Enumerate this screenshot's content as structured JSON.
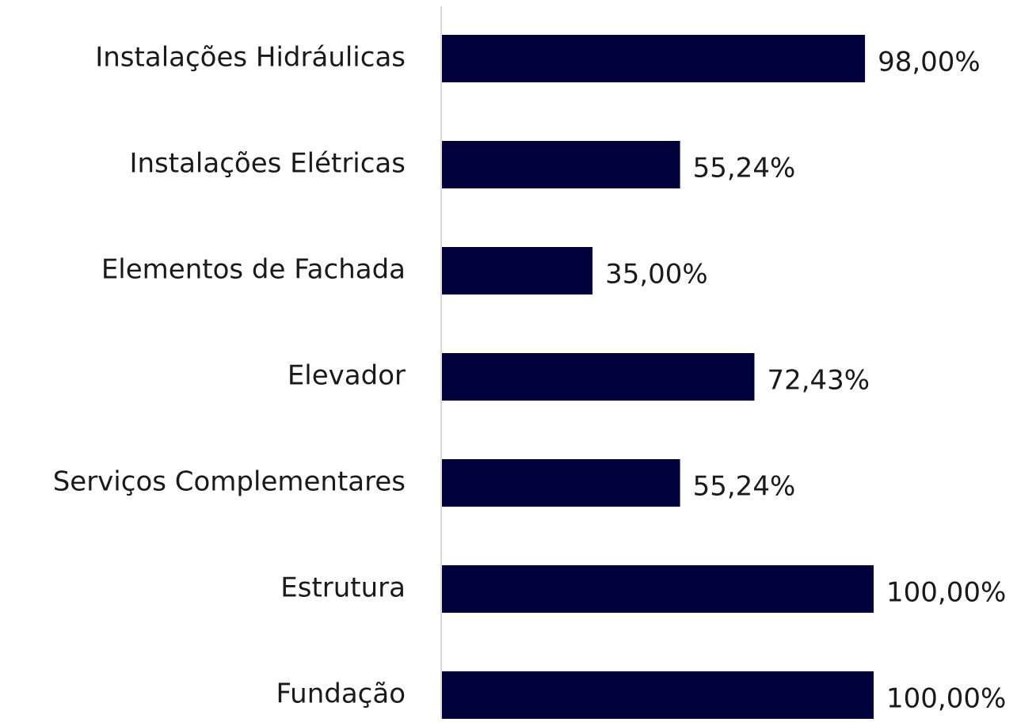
{
  "chart_data": {
    "type": "bar",
    "orientation": "horizontal",
    "categories": [
      "Instalações Hidráulicas",
      "Instalações Elétricas",
      "Elementos de Fachada",
      "Elevador",
      "Serviços Complementares",
      "Estrutura",
      "Fundação"
    ],
    "values": [
      98,
      55.24,
      35,
      72.43,
      55.24,
      100,
      100
    ],
    "value_labels": [
      "98,00%",
      "55,24%",
      "35,00%",
      "72,43%",
      "55,24%",
      "100,00%",
      "100,00%"
    ],
    "color": "#00003a",
    "grid": false
  }
}
